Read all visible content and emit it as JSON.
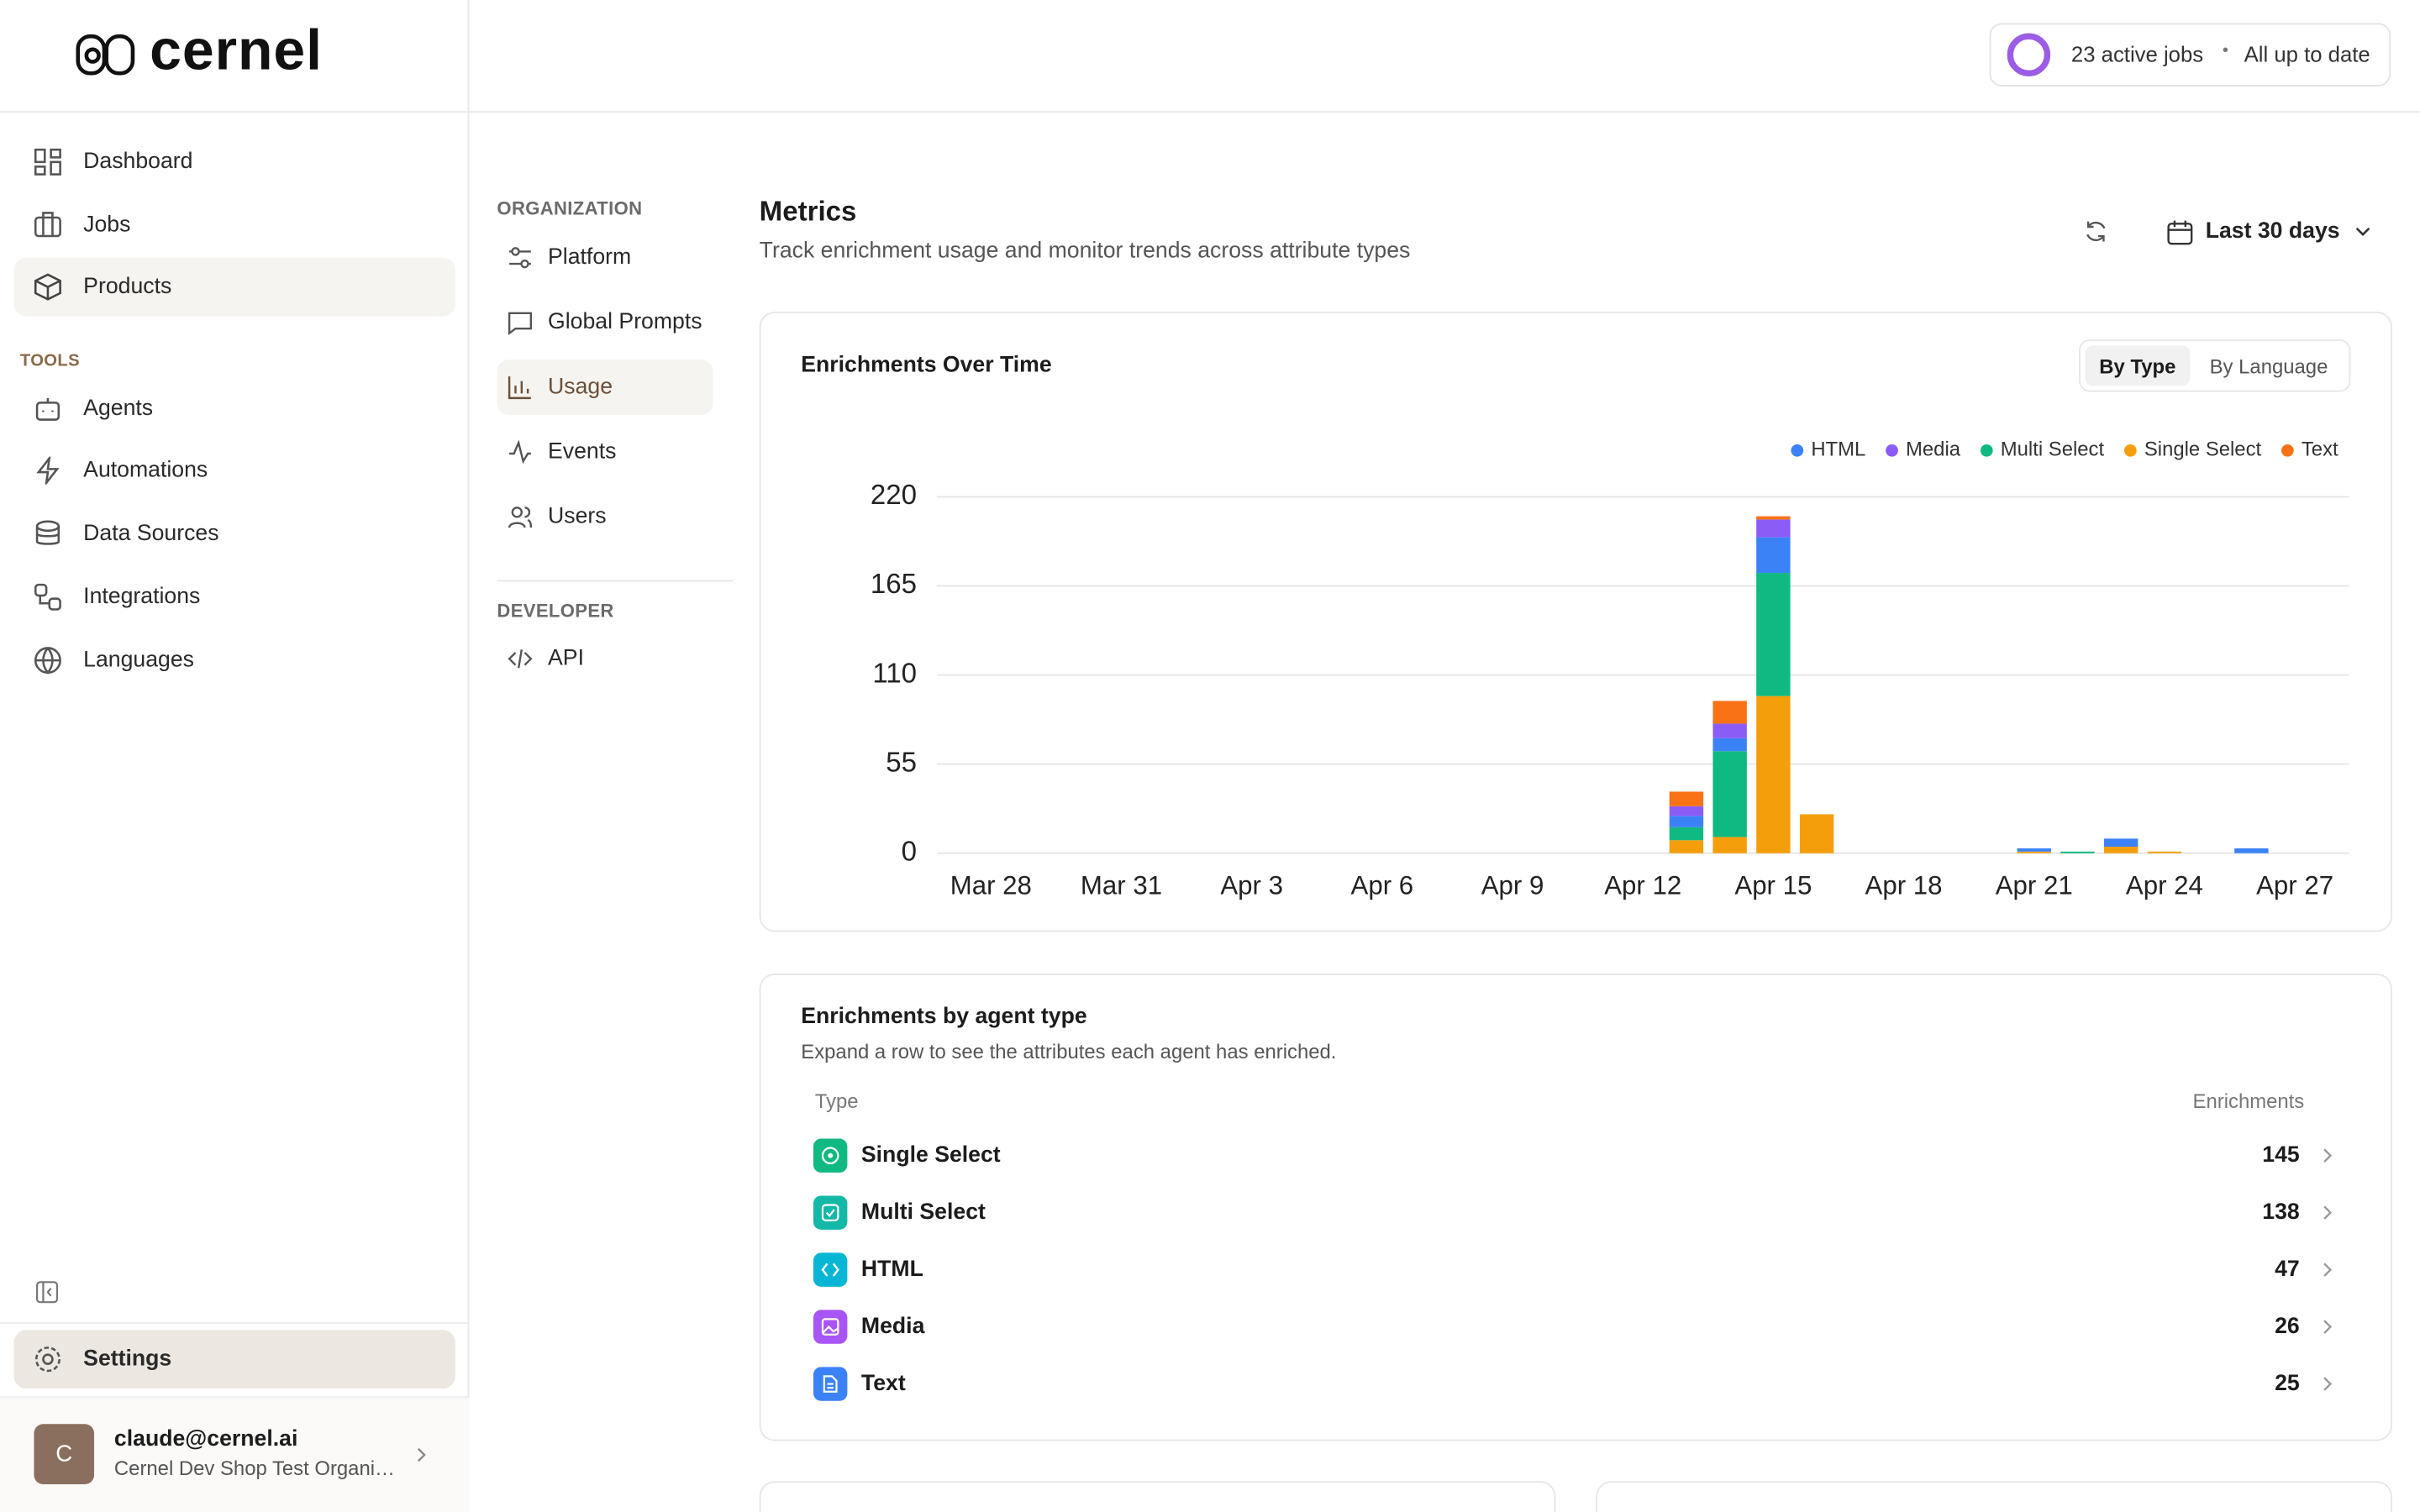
{
  "sidebar": {
    "logo": "cernel",
    "nav": [
      "Dashboard",
      "Jobs",
      "Products"
    ],
    "tools_heading": "TOOLS",
    "tools": [
      "Agents",
      "Automations",
      "Data Sources",
      "Integrations",
      "Languages"
    ],
    "settings": "Settings",
    "user": {
      "avatar": "C",
      "email": "claude@cernel.ai",
      "org": "Cernel Dev Shop Test Organi…"
    }
  },
  "header": {
    "jobs": "23 active jobs",
    "separator": "•",
    "status": "All up to date"
  },
  "settings_nav": {
    "organization_heading": "ORGANIZATION",
    "organization": [
      "Platform",
      "Global Prompts",
      "Usage",
      "Events",
      "Users"
    ],
    "developer_heading": "DEVELOPER",
    "developer": [
      "API"
    ]
  },
  "page": {
    "title": "Metrics",
    "subtitle": "Track enrichment usage and monitor trends across attribute types",
    "range": "Last 30 days"
  },
  "chart_toggle": [
    "By Type",
    "By Language"
  ],
  "chart_data": {
    "type": "bar",
    "stacked": true,
    "title": "Enrichments Over Time",
    "categories": [
      "Mar 28",
      null,
      null,
      "Mar 31",
      null,
      null,
      "Apr 3",
      null,
      null,
      "Apr 6",
      null,
      null,
      "Apr 9",
      null,
      null,
      "Apr 12",
      null,
      null,
      "Apr 15",
      null,
      null,
      "Apr 18",
      null,
      null,
      "Apr 21",
      null,
      null,
      "Apr 24",
      null,
      null,
      "Apr 27"
    ],
    "series": [
      {
        "name": "Single Select",
        "color": "#f59e0b",
        "values": [
          0,
          0,
          0,
          0,
          0,
          0,
          0,
          0,
          0,
          0,
          0,
          0,
          0,
          0,
          0,
          0,
          8,
          10,
          97,
          24,
          0,
          0,
          0,
          0,
          1,
          0,
          4,
          1,
          0,
          0,
          0
        ]
      },
      {
        "name": "Multi Select",
        "color": "#10b981",
        "values": [
          0,
          0,
          0,
          0,
          0,
          0,
          0,
          0,
          0,
          0,
          0,
          0,
          0,
          0,
          0,
          0,
          8,
          53,
          76,
          0,
          0,
          0,
          0,
          0,
          0,
          1,
          0,
          0,
          0,
          0,
          0
        ]
      },
      {
        "name": "HTML",
        "color": "#3b82f6",
        "values": [
          0,
          0,
          0,
          0,
          0,
          0,
          0,
          0,
          0,
          0,
          0,
          0,
          0,
          0,
          0,
          0,
          7,
          8,
          22,
          0,
          0,
          0,
          0,
          0,
          2,
          0,
          5,
          0,
          0,
          3,
          0
        ]
      },
      {
        "name": "Media",
        "color": "#8b5cf6",
        "values": [
          0,
          0,
          0,
          0,
          0,
          0,
          0,
          0,
          0,
          0,
          0,
          0,
          0,
          0,
          0,
          0,
          6,
          9,
          11,
          0,
          0,
          0,
          0,
          0,
          0,
          0,
          0,
          0,
          0,
          0,
          0
        ]
      },
      {
        "name": "Text",
        "color": "#f97316",
        "values": [
          0,
          0,
          0,
          0,
          0,
          0,
          0,
          0,
          0,
          0,
          0,
          0,
          0,
          0,
          0,
          0,
          9,
          14,
          2,
          0,
          0,
          0,
          0,
          0,
          0,
          0,
          0,
          0,
          0,
          0,
          0
        ]
      }
    ],
    "ylim": [
      0,
      220
    ],
    "yticks": [
      0,
      55,
      110,
      165,
      220
    ],
    "grid": true,
    "legend": "top-right"
  },
  "agent_table": {
    "title": "Enrichments by agent type",
    "subtitle": "Expand a row to see the attributes each agent has enriched.",
    "columns": [
      "Type",
      "Enrichments"
    ],
    "rows": [
      {
        "type": "Single Select",
        "count": 145
      },
      {
        "type": "Multi Select",
        "count": 138
      },
      {
        "type": "HTML",
        "count": 47
      },
      {
        "type": "Media",
        "count": 26
      },
      {
        "type": "Text",
        "count": 25
      }
    ]
  }
}
